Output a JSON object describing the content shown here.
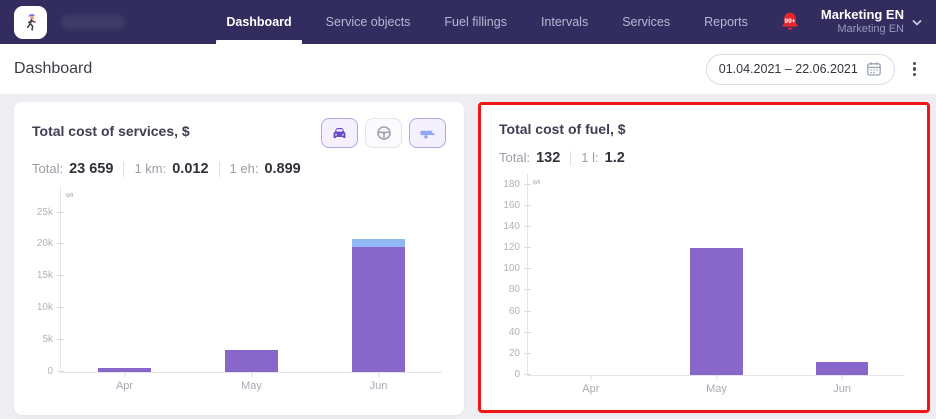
{
  "nav": {
    "items": [
      {
        "label": "Dashboard",
        "active": true
      },
      {
        "label": "Service objects",
        "active": false
      },
      {
        "label": "Fuel fillings",
        "active": false
      },
      {
        "label": "Intervals",
        "active": false
      },
      {
        "label": "Services",
        "active": false
      },
      {
        "label": "Reports",
        "active": false
      }
    ],
    "notifications_badge": "99+",
    "user_name": "Marketing EN",
    "user_role": "Marketing EN"
  },
  "header": {
    "title": "Dashboard",
    "date_range": "01.04.2021 – 22.06.2021"
  },
  "toolbar_icons": [
    "car",
    "steering-wheel",
    "trailer"
  ],
  "colors": {
    "topbar_bg": "#322d5e",
    "bar_purple": "#8767ca",
    "bar_blue": "#90b9f3",
    "highlight_red": "#f01616",
    "page_bg": "#ededf2",
    "notification_red": "#e5282c"
  },
  "chart_data": [
    {
      "type": "bar",
      "title": "Total cost of services, $",
      "stats": [
        {
          "label": "Total:",
          "value": "23 659"
        },
        {
          "label": "1 km:",
          "value": "0.012"
        },
        {
          "label": "1 eh:",
          "value": "0.899"
        }
      ],
      "categories": [
        "Apr",
        "May",
        "Jun"
      ],
      "series": [
        {
          "name": "services",
          "color": "#8767ca",
          "values": [
            650,
            3400,
            19600
          ]
        },
        {
          "name": "services-extra",
          "color": "#90b9f3",
          "values": [
            0,
            0,
            1300
          ]
        }
      ],
      "stacked": true,
      "ylabel": "$",
      "ylim": [
        0,
        29000
      ],
      "yticks": [
        {
          "value": 0,
          "label": "0"
        },
        {
          "value": 5000,
          "label": "5k"
        },
        {
          "value": 10000,
          "label": "10k"
        },
        {
          "value": 15000,
          "label": "15k"
        },
        {
          "value": 20000,
          "label": "20k"
        },
        {
          "value": 25000,
          "label": "25k"
        }
      ],
      "legend": "none",
      "grid": false
    },
    {
      "type": "bar",
      "title": "Total cost of fuel, $",
      "stats": [
        {
          "label": "Total:",
          "value": "132"
        },
        {
          "label": "1 l:",
          "value": "1.2"
        }
      ],
      "categories": [
        "Apr",
        "May",
        "Jun"
      ],
      "series": [
        {
          "name": "fuel",
          "color": "#8767ca",
          "values": [
            0,
            120,
            12
          ]
        }
      ],
      "stacked": false,
      "ylabel": "$",
      "ylim": [
        0,
        190
      ],
      "yticks": [
        {
          "value": 0,
          "label": "0"
        },
        {
          "value": 20,
          "label": "20"
        },
        {
          "value": 40,
          "label": "40"
        },
        {
          "value": 60,
          "label": "60"
        },
        {
          "value": 80,
          "label": "80"
        },
        {
          "value": 100,
          "label": "100"
        },
        {
          "value": 120,
          "label": "120"
        },
        {
          "value": 140,
          "label": "140"
        },
        {
          "value": 160,
          "label": "160"
        },
        {
          "value": 180,
          "label": "180"
        }
      ],
      "legend": "none",
      "grid": false
    }
  ]
}
